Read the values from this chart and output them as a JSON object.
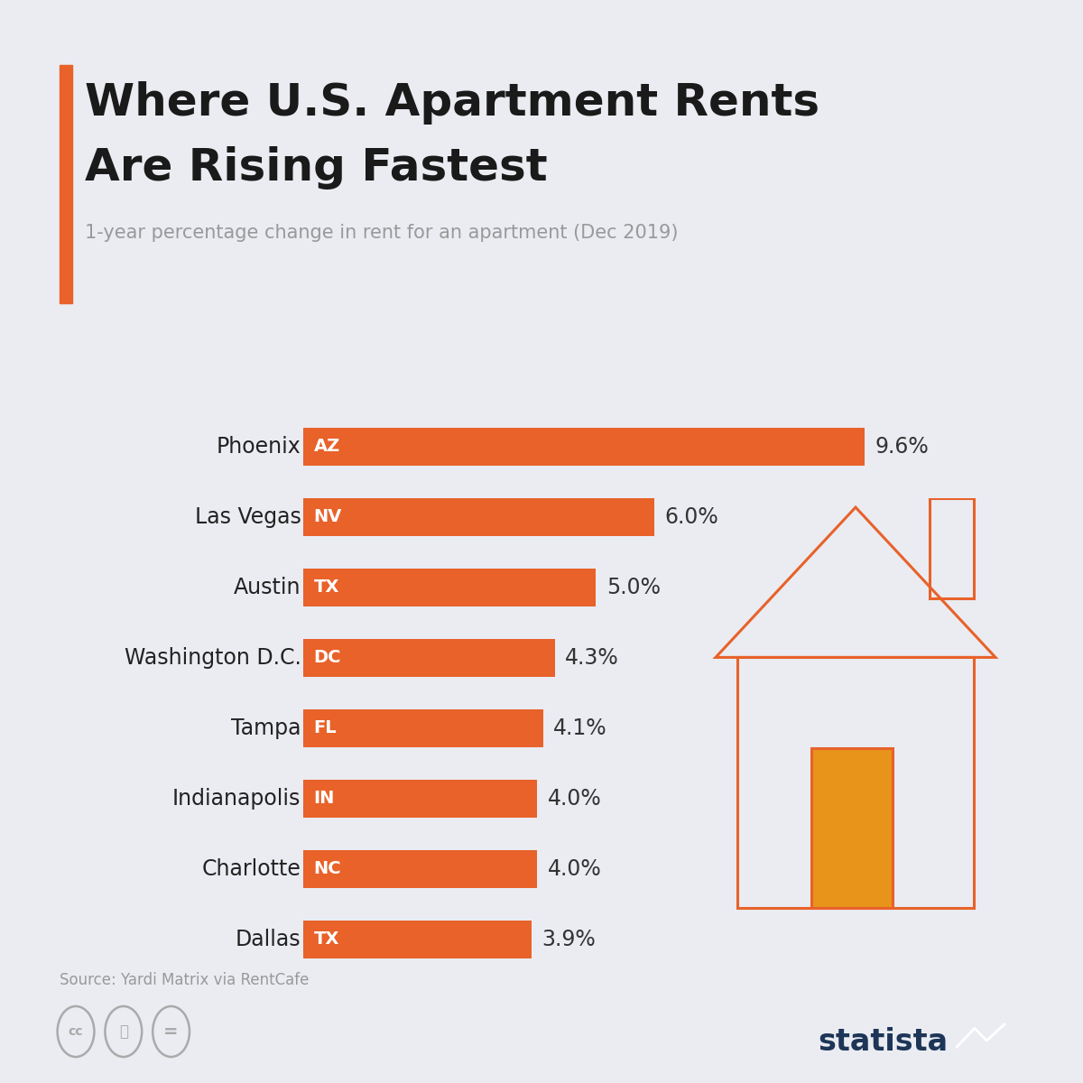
{
  "title_line1": "Where U.S. Apartment Rents",
  "title_line2": "Are Rising Fastest",
  "subtitle": "1-year percentage change in rent for an apartment (Dec 2019)",
  "cities": [
    "Dallas",
    "Charlotte",
    "Indianapolis",
    "Tampa",
    "Washington D.C.",
    "Austin",
    "Las Vegas",
    "Phoenix"
  ],
  "state_codes": [
    "TX",
    "NC",
    "IN",
    "FL",
    "DC",
    "TX",
    "NV",
    "AZ"
  ],
  "values": [
    3.9,
    4.0,
    4.0,
    4.1,
    4.3,
    5.0,
    6.0,
    9.6
  ],
  "labels": [
    "3.9%",
    "4.0%",
    "4.0%",
    "4.1%",
    "4.3%",
    "5.0%",
    "6.0%",
    "9.6%"
  ],
  "bar_color": "#E8622A",
  "background_color": "#EAECF2",
  "title_color": "#1a1a1a",
  "subtitle_color": "#999999",
  "city_label_color": "#222222",
  "value_label_color": "#333333",
  "state_text_color": "#FFFFFF",
  "accent_bar_color": "#E8622A",
  "source_text": "Source: Yardi Matrix via RentCafe",
  "statista_color": "#1D3557",
  "door_color": "#E8931A",
  "max_bar_value": 10.0,
  "bar_height": 0.55
}
